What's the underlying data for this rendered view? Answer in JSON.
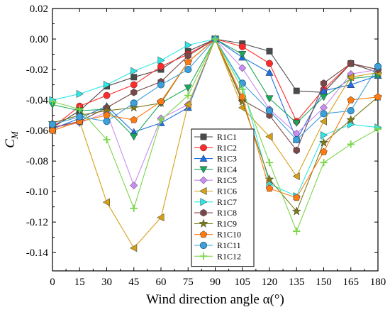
{
  "chart_data": {
    "type": "line",
    "xlabel": "Wind direction angle α(°)",
    "ylabel": "C",
    "ylabel_subscript": "M",
    "x": [
      0,
      15,
      30,
      45,
      60,
      75,
      90,
      105,
      120,
      135,
      150,
      165,
      180
    ],
    "xticks": [
      "0",
      "15",
      "30",
      "45",
      "60",
      "75",
      "90",
      "105",
      "120",
      "135",
      "150",
      "165",
      "180"
    ],
    "yticks": [
      "0.02",
      "0.00",
      "-0.02",
      "-0.04",
      "-0.06",
      "-0.08",
      "-0.10",
      "-0.12",
      "-0.14"
    ],
    "ytick_values": [
      0.02,
      0.0,
      -0.02,
      -0.04,
      -0.06,
      -0.08,
      -0.1,
      -0.12,
      -0.14
    ],
    "xlim": [
      0,
      180
    ],
    "ylim": [
      -0.152,
      0.02
    ],
    "grid": false,
    "legend_position": "center",
    "series": [
      {
        "name": "R1C1",
        "color": "#4a4a4a",
        "marker": "square",
        "values": [
          -0.058,
          -0.047,
          -0.031,
          -0.025,
          -0.02,
          -0.008,
          0.0,
          -0.003,
          -0.008,
          -0.034,
          -0.035,
          -0.016,
          -0.022
        ]
      },
      {
        "name": "R1C2",
        "color": "#ff2a2a",
        "marker": "circle",
        "values": [
          -0.058,
          -0.044,
          -0.037,
          -0.03,
          -0.018,
          -0.01,
          0.0,
          -0.005,
          -0.016,
          -0.054,
          -0.033,
          -0.016,
          -0.02
        ]
      },
      {
        "name": "R1C3",
        "color": "#1f6fe0",
        "marker": "triangle-up",
        "values": [
          -0.059,
          -0.052,
          -0.044,
          -0.061,
          -0.055,
          -0.045,
          0.0,
          -0.012,
          -0.022,
          -0.066,
          -0.034,
          -0.03,
          -0.024
        ]
      },
      {
        "name": "R1C4",
        "color": "#19a85a",
        "marker": "triangle-down",
        "values": [
          -0.043,
          -0.047,
          -0.046,
          -0.064,
          -0.042,
          -0.032,
          0.0,
          -0.01,
          -0.039,
          -0.055,
          -0.038,
          -0.026,
          -0.024
        ]
      },
      {
        "name": "R1C5",
        "color": "#c98cf0",
        "marker": "diamond",
        "values": [
          -0.058,
          -0.055,
          -0.048,
          -0.096,
          -0.052,
          -0.043,
          0.0,
          -0.019,
          -0.046,
          -0.062,
          -0.045,
          -0.023,
          -0.02
        ]
      },
      {
        "name": "R1C6",
        "color": "#d4a017",
        "marker": "triangle-left",
        "values": [
          -0.06,
          -0.054,
          -0.107,
          -0.137,
          -0.117,
          -0.043,
          0.0,
          -0.045,
          -0.064,
          -0.09,
          -0.054,
          -0.025,
          -0.022
        ]
      },
      {
        "name": "R1C7",
        "color": "#2ee6e6",
        "marker": "triangle-right",
        "values": [
          -0.04,
          -0.036,
          -0.03,
          -0.021,
          -0.014,
          -0.004,
          0.0,
          -0.03,
          -0.095,
          -0.103,
          -0.063,
          -0.056,
          -0.058
        ]
      },
      {
        "name": "R1C8",
        "color": "#7a4848",
        "marker": "hexagon",
        "values": [
          -0.058,
          -0.054,
          -0.045,
          -0.035,
          -0.028,
          -0.011,
          0.0,
          -0.04,
          -0.05,
          -0.073,
          -0.029,
          -0.016,
          -0.02
        ]
      },
      {
        "name": "R1C9",
        "color": "#7a7a1a",
        "marker": "star",
        "values": [
          -0.055,
          -0.05,
          -0.047,
          -0.045,
          -0.042,
          -0.015,
          0.0,
          -0.041,
          -0.092,
          -0.113,
          -0.068,
          -0.053,
          -0.038
        ]
      },
      {
        "name": "R1C10",
        "color": "#ff7a10",
        "marker": "pentagon",
        "values": [
          -0.06,
          -0.054,
          -0.05,
          -0.053,
          -0.041,
          -0.015,
          0.0,
          -0.038,
          -0.098,
          -0.104,
          -0.074,
          -0.04,
          -0.038
        ]
      },
      {
        "name": "R1C11",
        "color": "#3da0d8",
        "marker": "sphere",
        "values": [
          -0.056,
          -0.051,
          -0.054,
          -0.042,
          -0.03,
          -0.02,
          0.0,
          -0.029,
          -0.047,
          -0.066,
          -0.049,
          -0.047,
          -0.018
        ]
      },
      {
        "name": "R1C12",
        "color": "#7ad64a",
        "marker": "plus",
        "values": [
          -0.041,
          -0.046,
          -0.066,
          -0.111,
          -0.053,
          -0.037,
          0.0,
          -0.033,
          -0.081,
          -0.126,
          -0.081,
          -0.069,
          -0.059
        ]
      }
    ]
  }
}
